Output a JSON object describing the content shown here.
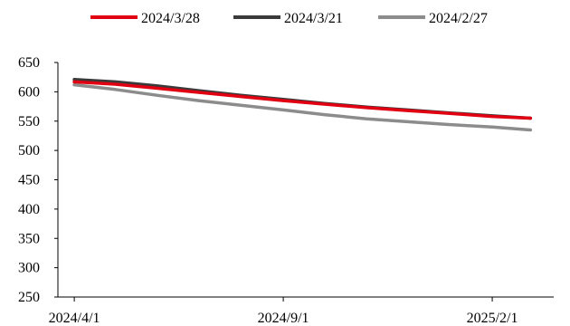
{
  "chart_data": {
    "type": "line",
    "title": "",
    "xlabel": "",
    "ylabel": "",
    "ylim": [
      250,
      650
    ],
    "yticks": [
      250,
      300,
      350,
      400,
      450,
      500,
      550,
      600,
      650
    ],
    "xlim": [
      "2024/3/20",
      "2025/3/18"
    ],
    "xticks": [
      "2024/4/1",
      "2024/9/1",
      "2025/2/1"
    ],
    "grid": false,
    "legend_position": "top",
    "series": [
      {
        "name": "2024/3/28",
        "color": "#e00012",
        "points": [
          [
            "2024/4/1",
            617
          ],
          [
            "2024/5/1",
            613
          ],
          [
            "2024/6/1",
            606
          ],
          [
            "2024/7/1",
            599
          ],
          [
            "2024/8/1",
            592
          ],
          [
            "2024/9/1",
            585
          ],
          [
            "2024/10/1",
            579
          ],
          [
            "2024/11/1",
            573
          ],
          [
            "2024/12/1",
            568
          ],
          [
            "2025/1/1",
            563
          ],
          [
            "2025/2/1",
            558
          ],
          [
            "2025/3/1",
            555
          ]
        ]
      },
      {
        "name": "2024/3/21",
        "color": "#3a3a3a",
        "points": [
          [
            "2024/4/1",
            621
          ],
          [
            "2024/5/1",
            617
          ],
          [
            "2024/6/1",
            610
          ],
          [
            "2024/7/1",
            602
          ],
          [
            "2024/8/1",
            594
          ],
          [
            "2024/9/1",
            587
          ],
          [
            "2024/10/1",
            580
          ],
          [
            "2024/11/1",
            574
          ],
          [
            "2024/12/1",
            569
          ],
          [
            "2025/1/1",
            564
          ],
          [
            "2025/2/1",
            559
          ],
          [
            "2025/3/1",
            555
          ]
        ]
      },
      {
        "name": "2024/2/27",
        "color": "#8c8c8c",
        "points": [
          [
            "2024/4/1",
            612
          ],
          [
            "2024/5/1",
            604
          ],
          [
            "2024/6/1",
            594
          ],
          [
            "2024/7/1",
            585
          ],
          [
            "2024/8/1",
            577
          ],
          [
            "2024/9/1",
            569
          ],
          [
            "2024/10/1",
            561
          ],
          [
            "2024/11/1",
            554
          ],
          [
            "2024/12/1",
            549
          ],
          [
            "2025/1/1",
            544
          ],
          [
            "2025/2/1",
            540
          ],
          [
            "2025/3/1",
            535
          ]
        ]
      }
    ]
  }
}
